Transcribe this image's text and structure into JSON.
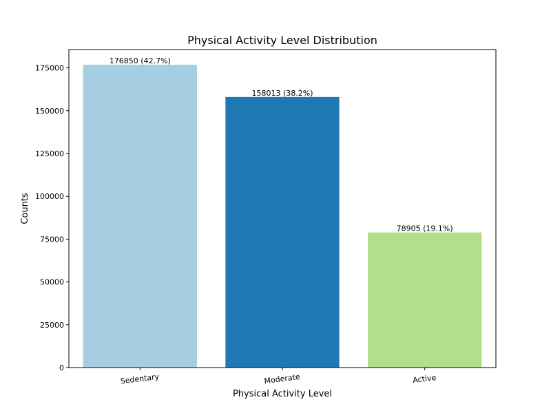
{
  "chart_data": {
    "type": "bar",
    "title": "Physical Activity Level Distribution",
    "xlabel": "Physical Activity Level",
    "ylabel": "Counts",
    "categories": [
      "Sedentary",
      "Moderate",
      "Active"
    ],
    "values": [
      176850,
      158013,
      78905
    ],
    "data_labels": [
      "176850 (42.7%)",
      "158013 (38.2%)",
      "78905 (19.1%)"
    ],
    "colors": [
      "#a6cee3",
      "#1f78b4",
      "#b2df8a"
    ],
    "ylim": [
      0,
      185692.5
    ],
    "yticks": [
      0,
      25000,
      50000,
      75000,
      100000,
      125000,
      150000,
      175000
    ],
    "ytick_labels": [
      "0",
      "25000",
      "50000",
      "75000",
      "100000",
      "125000",
      "150000",
      "175000"
    ],
    "grid": false,
    "legend": "none"
  }
}
